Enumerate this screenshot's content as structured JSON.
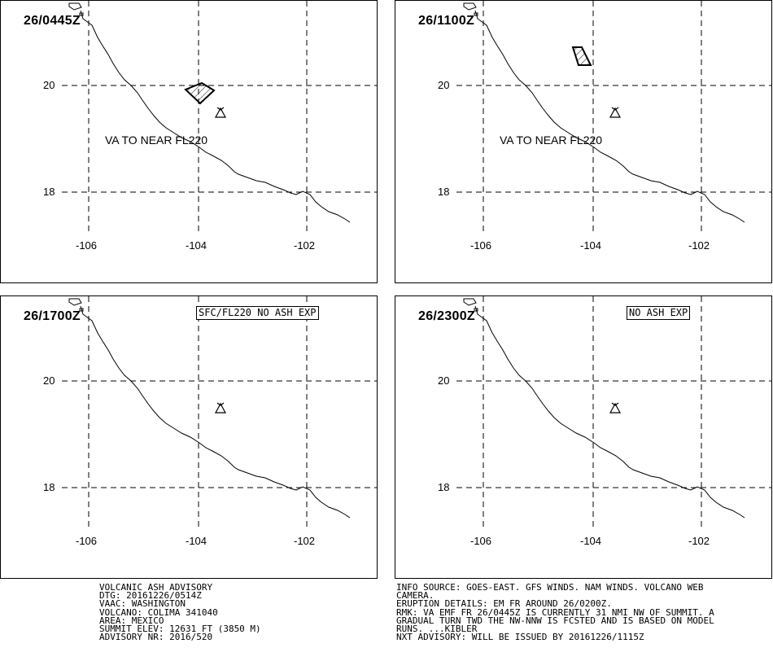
{
  "panels": [
    {
      "time": "26/0445Z",
      "va_label": "VA TO NEAR FL220",
      "box_label": "",
      "polygon": "a"
    },
    {
      "time": "26/1100Z",
      "va_label": "VA TO NEAR FL220",
      "box_label": "",
      "polygon": "b"
    },
    {
      "time": "26/1700Z",
      "va_label": "",
      "box_label": "SFC/FL220 NO ASH EXP",
      "polygon": ""
    },
    {
      "time": "26/2300Z",
      "va_label": "",
      "box_label": "NO ASH EXP",
      "polygon": ""
    }
  ],
  "axes": {
    "lat_labels": [
      "20",
      "18"
    ],
    "lon_labels": [
      "-106",
      "-104",
      "-102"
    ]
  },
  "map": {
    "volcano_icon": "volcano-triangle-icon",
    "coastline_color": "#000000",
    "ash_hatch_color": "#000000"
  },
  "advisory_left": [
    "VOLCANIC ASH ADVISORY",
    "DTG: 20161226/0514Z",
    "VAAC: WASHINGTON",
    "VOLCANO: COLIMA 341040",
    "AREA: MEXICO",
    "SUMMIT ELEV: 12631 FT (3850 M)",
    "ADVISORY NR: 2016/520"
  ],
  "advisory_right": [
    "INFO SOURCE: GOES-EAST. GFS WINDS. NAM WINDS. VOLCANO WEB",
    "CAMERA.",
    "ERUPTION DETAILS: EM FR AROUND 26/0200Z.",
    "RMK: VA EMF FR 26/0445Z IS CURRENTLY 31 NMI NW OF SUMMIT. A",
    "GRADUAL TURN TWD THE NW-NNW IS FCSTED AND IS BASED ON MODEL",
    "RUNS. ...KIBLER",
    "NXT ADVISORY: WILL BE ISSUED BY 20161226/1115Z"
  ]
}
